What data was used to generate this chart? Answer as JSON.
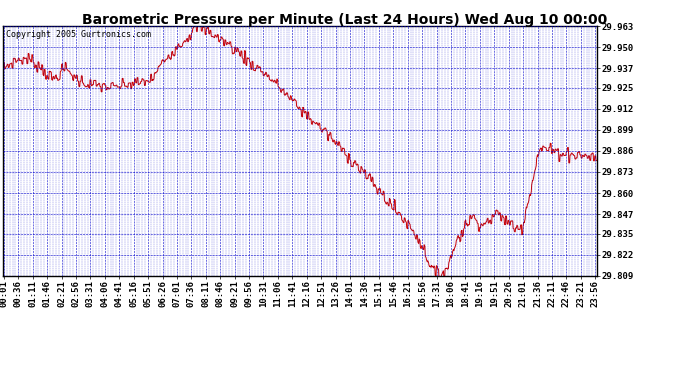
{
  "title": "Barometric Pressure per Minute (Last 24 Hours) Wed Aug 10 00:00",
  "copyright": "Copyright 2005 Gurtronics.com",
  "ylabel_values": [
    29.963,
    29.95,
    29.937,
    29.925,
    29.912,
    29.899,
    29.886,
    29.873,
    29.86,
    29.847,
    29.835,
    29.822,
    29.809
  ],
  "ylim": [
    29.809,
    29.963
  ],
  "line_color": "#cc0000",
  "background_color": "#ffffff",
  "grid_color": "#0000cc",
  "title_fontsize": 10,
  "copyright_fontsize": 6,
  "tick_fontsize": 6.5,
  "figsize": [
    6.9,
    3.75
  ],
  "dpi": 100,
  "tick_minutes": [
    1,
    36,
    71,
    106,
    141,
    176,
    211,
    246,
    281,
    316,
    351,
    386,
    421,
    456,
    491,
    526,
    561,
    596,
    631,
    666,
    701,
    736,
    771,
    806,
    841,
    876,
    911,
    946,
    981,
    1016,
    1051,
    1086,
    1121,
    1156,
    1191,
    1226,
    1261,
    1296,
    1331,
    1366,
    1401,
    1436
  ],
  "pressure_keypoints": [
    [
      0.0,
      29.937
    ],
    [
      0.5,
      29.942
    ],
    [
      1.0,
      29.943
    ],
    [
      1.5,
      29.938
    ],
    [
      2.0,
      29.93
    ],
    [
      2.5,
      29.937
    ],
    [
      3.0,
      29.93
    ],
    [
      3.5,
      29.927
    ],
    [
      4.0,
      29.926
    ],
    [
      4.5,
      29.925
    ],
    [
      5.0,
      29.927
    ],
    [
      5.5,
      29.928
    ],
    [
      6.0,
      29.93
    ],
    [
      6.5,
      29.942
    ],
    [
      7.0,
      29.95
    ],
    [
      7.5,
      29.957
    ],
    [
      7.8,
      29.963
    ],
    [
      8.0,
      29.962
    ],
    [
      8.3,
      29.96
    ],
    [
      8.5,
      29.958
    ],
    [
      8.75,
      29.955
    ],
    [
      9.0,
      29.953
    ],
    [
      9.25,
      29.95
    ],
    [
      9.5,
      29.947
    ],
    [
      9.75,
      29.944
    ],
    [
      10.0,
      29.94
    ],
    [
      10.5,
      29.935
    ],
    [
      11.0,
      29.928
    ],
    [
      11.5,
      29.92
    ],
    [
      12.0,
      29.912
    ],
    [
      12.5,
      29.905
    ],
    [
      13.0,
      29.898
    ],
    [
      13.5,
      29.89
    ],
    [
      14.0,
      29.882
    ],
    [
      14.5,
      29.874
    ],
    [
      15.0,
      29.865
    ],
    [
      15.5,
      29.856
    ],
    [
      16.0,
      29.847
    ],
    [
      16.25,
      29.843
    ],
    [
      16.5,
      29.838
    ],
    [
      16.75,
      29.833
    ],
    [
      17.0,
      29.825
    ],
    [
      17.1,
      29.822
    ],
    [
      17.2,
      29.818
    ],
    [
      17.3,
      29.815
    ],
    [
      17.4,
      29.812
    ],
    [
      17.5,
      29.81
    ],
    [
      17.6,
      29.809
    ],
    [
      17.7,
      29.809
    ],
    [
      17.8,
      29.812
    ],
    [
      18.0,
      29.815
    ],
    [
      18.1,
      29.82
    ],
    [
      18.2,
      29.825
    ],
    [
      18.3,
      29.83
    ],
    [
      18.4,
      29.833
    ],
    [
      18.5,
      29.835
    ],
    [
      18.6,
      29.837
    ],
    [
      18.7,
      29.84
    ],
    [
      18.8,
      29.843
    ],
    [
      19.0,
      29.845
    ],
    [
      19.2,
      29.843
    ],
    [
      19.4,
      29.84
    ],
    [
      19.6,
      29.843
    ],
    [
      19.8,
      29.845
    ],
    [
      20.0,
      29.847
    ],
    [
      20.2,
      29.845
    ],
    [
      20.4,
      29.842
    ],
    [
      20.6,
      29.84
    ],
    [
      20.8,
      29.838
    ],
    [
      21.0,
      29.84
    ],
    [
      21.1,
      29.847
    ],
    [
      21.2,
      29.855
    ],
    [
      21.3,
      29.86
    ],
    [
      21.4,
      29.868
    ],
    [
      21.5,
      29.875
    ],
    [
      21.6,
      29.882
    ],
    [
      21.7,
      29.886
    ],
    [
      21.8,
      29.888
    ],
    [
      22.0,
      29.887
    ],
    [
      22.2,
      29.886
    ],
    [
      22.5,
      29.885
    ],
    [
      23.0,
      29.884
    ],
    [
      23.5,
      29.883
    ],
    [
      24.0,
      29.882
    ]
  ]
}
